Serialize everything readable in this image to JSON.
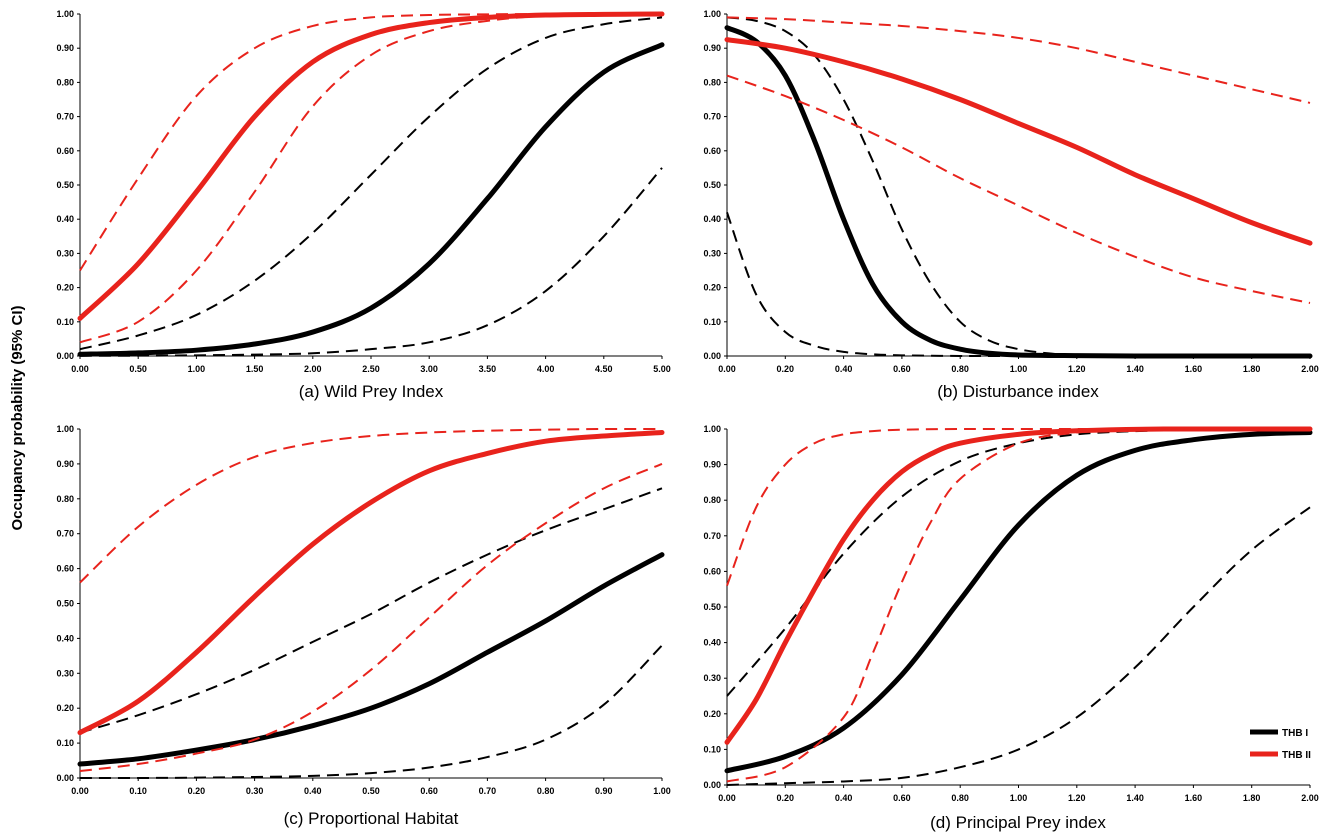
{
  "figure": {
    "ylabel": "Occupancy probability (95% CI)",
    "colors": {
      "THB I": "#000000",
      "THB II": "#e8231c"
    }
  },
  "chart_data": [
    {
      "type": "line",
      "title": "(a) Wild Prey Index",
      "xlim": [
        0,
        5
      ],
      "ylim": [
        0,
        1
      ],
      "grid": false,
      "x_ticks": [
        "0.00",
        "0.50",
        "1.00",
        "1.50",
        "2.00",
        "2.50",
        "3.00",
        "3.50",
        "4.00",
        "4.50",
        "5.00"
      ],
      "y_ticks": [
        "0.00",
        "0.10",
        "0.20",
        "0.30",
        "0.40",
        "0.50",
        "0.60",
        "0.70",
        "0.80",
        "0.90",
        "1.00"
      ],
      "series": [
        {
          "color": "#000000",
          "style": "solid",
          "x": [
            0,
            0.5,
            1,
            1.5,
            2,
            2.5,
            3,
            3.5,
            4,
            4.5,
            5
          ],
          "y": [
            0.005,
            0.009,
            0.017,
            0.035,
            0.07,
            0.14,
            0.27,
            0.46,
            0.67,
            0.83,
            0.91
          ]
        },
        {
          "color": "#000000",
          "style": "dashed",
          "x": [
            0,
            0.5,
            1,
            1.5,
            2,
            2.5,
            3,
            3.5,
            4,
            4.5,
            5
          ],
          "y": [
            0.02,
            0.06,
            0.12,
            0.22,
            0.36,
            0.53,
            0.7,
            0.84,
            0.93,
            0.97,
            0.99
          ]
        },
        {
          "color": "#000000",
          "style": "dashed",
          "x": [
            0,
            0.5,
            1,
            1.5,
            2,
            2.5,
            3,
            3.5,
            4,
            4.5,
            5
          ],
          "y": [
            0.0005,
            0.001,
            0.002,
            0.004,
            0.008,
            0.02,
            0.04,
            0.09,
            0.19,
            0.35,
            0.55
          ]
        },
        {
          "color": "#e8231c",
          "style": "solid",
          "x": [
            0,
            0.5,
            1,
            1.5,
            2,
            2.5,
            3,
            3.5,
            4,
            4.5,
            5
          ],
          "y": [
            0.11,
            0.27,
            0.48,
            0.7,
            0.86,
            0.94,
            0.975,
            0.99,
            0.997,
            0.999,
            1.0
          ]
        },
        {
          "color": "#e8231c",
          "style": "dashed",
          "x": [
            0,
            0.5,
            1,
            1.5,
            2,
            2.5,
            3,
            3.5,
            4,
            4.5,
            5
          ],
          "y": [
            0.25,
            0.52,
            0.76,
            0.9,
            0.965,
            0.99,
            0.997,
            0.999,
            1.0,
            1.0,
            1.0
          ]
        },
        {
          "color": "#e8231c",
          "style": "dashed",
          "x": [
            0,
            0.5,
            1,
            1.5,
            2,
            2.5,
            3,
            3.5,
            4,
            4.5,
            5
          ],
          "y": [
            0.04,
            0.1,
            0.25,
            0.48,
            0.73,
            0.88,
            0.95,
            0.98,
            0.995,
            0.998,
            1.0
          ]
        }
      ]
    },
    {
      "type": "line",
      "title": "(b) Disturbance index",
      "xlim": [
        0,
        2
      ],
      "ylim": [
        0,
        1
      ],
      "grid": false,
      "x_ticks": [
        "0.00",
        "0.20",
        "0.40",
        "0.60",
        "0.80",
        "1.00",
        "1.20",
        "1.40",
        "1.60",
        "1.80",
        "2.00"
      ],
      "y_ticks": [
        "0.00",
        "0.10",
        "0.20",
        "0.30",
        "0.40",
        "0.50",
        "0.60",
        "0.70",
        "0.80",
        "0.90",
        "1.00"
      ],
      "series": [
        {
          "color": "#000000",
          "style": "solid",
          "x": [
            0,
            0.1,
            0.2,
            0.3,
            0.4,
            0.5,
            0.6,
            0.7,
            0.8,
            0.9,
            1.0,
            1.2,
            1.4,
            1.6,
            1.8,
            2.0
          ],
          "y": [
            0.96,
            0.92,
            0.82,
            0.63,
            0.4,
            0.21,
            0.1,
            0.045,
            0.02,
            0.008,
            0.003,
            0.001,
            0.0,
            0.0,
            0.0,
            0.0
          ]
        },
        {
          "color": "#000000",
          "style": "dashed",
          "x": [
            0,
            0.1,
            0.2,
            0.3,
            0.4,
            0.5,
            0.6,
            0.7,
            0.8,
            0.9,
            1.0,
            1.1,
            1.2,
            1.4,
            1.6,
            2.0
          ],
          "y": [
            0.99,
            0.98,
            0.95,
            0.88,
            0.75,
            0.57,
            0.37,
            0.21,
            0.1,
            0.045,
            0.02,
            0.008,
            0.003,
            0.0,
            0.0,
            0.0
          ]
        },
        {
          "color": "#000000",
          "style": "dashed",
          "x": [
            0,
            0.1,
            0.2,
            0.3,
            0.4,
            0.5,
            0.6,
            0.8,
            1.0,
            1.5,
            2.0
          ],
          "y": [
            0.42,
            0.18,
            0.07,
            0.03,
            0.012,
            0.005,
            0.002,
            0.0,
            0.0,
            0.0,
            0.0
          ]
        },
        {
          "color": "#e8231c",
          "style": "solid",
          "x": [
            0,
            0.2,
            0.4,
            0.6,
            0.8,
            1.0,
            1.2,
            1.4,
            1.6,
            1.8,
            2.0
          ],
          "y": [
            0.925,
            0.9,
            0.86,
            0.81,
            0.75,
            0.68,
            0.61,
            0.53,
            0.46,
            0.39,
            0.33
          ]
        },
        {
          "color": "#e8231c",
          "style": "dashed",
          "x": [
            0,
            0.2,
            0.4,
            0.6,
            0.8,
            1.0,
            1.2,
            1.4,
            1.6,
            1.8,
            2.0
          ],
          "y": [
            0.99,
            0.985,
            0.975,
            0.965,
            0.95,
            0.93,
            0.9,
            0.86,
            0.82,
            0.78,
            0.74
          ]
        },
        {
          "color": "#e8231c",
          "style": "dashed",
          "x": [
            0,
            0.2,
            0.4,
            0.6,
            0.8,
            1.0,
            1.2,
            1.4,
            1.6,
            1.8,
            2.0
          ],
          "y": [
            0.82,
            0.76,
            0.69,
            0.61,
            0.52,
            0.44,
            0.36,
            0.29,
            0.23,
            0.19,
            0.155
          ]
        }
      ]
    },
    {
      "type": "line",
      "title": "(c) Proportional Habitat",
      "xlim": [
        0,
        1
      ],
      "ylim": [
        0,
        1
      ],
      "grid": false,
      "x_ticks": [
        "0.00",
        "0.10",
        "0.20",
        "0.30",
        "0.40",
        "0.50",
        "0.60",
        "0.70",
        "0.80",
        "0.90",
        "1.00"
      ],
      "y_ticks": [
        "0.00",
        "0.10",
        "0.20",
        "0.30",
        "0.40",
        "0.50",
        "0.60",
        "0.70",
        "0.80",
        "0.90",
        "1.00"
      ],
      "series": [
        {
          "color": "#000000",
          "style": "solid",
          "x": [
            0,
            0.1,
            0.2,
            0.3,
            0.4,
            0.5,
            0.6,
            0.7,
            0.8,
            0.9,
            1.0
          ],
          "y": [
            0.04,
            0.055,
            0.08,
            0.11,
            0.15,
            0.2,
            0.27,
            0.36,
            0.45,
            0.55,
            0.64
          ]
        },
        {
          "color": "#000000",
          "style": "dashed",
          "x": [
            0,
            0.1,
            0.2,
            0.3,
            0.4,
            0.5,
            0.6,
            0.7,
            0.8,
            0.9,
            1.0
          ],
          "y": [
            0.13,
            0.18,
            0.24,
            0.31,
            0.39,
            0.47,
            0.56,
            0.64,
            0.71,
            0.77,
            0.83
          ]
        },
        {
          "color": "#000000",
          "style": "dashed",
          "x": [
            0,
            0.1,
            0.2,
            0.3,
            0.4,
            0.5,
            0.6,
            0.7,
            0.8,
            0.9,
            1.0
          ],
          "y": [
            0.0,
            0.0,
            0.001,
            0.003,
            0.006,
            0.014,
            0.03,
            0.06,
            0.11,
            0.21,
            0.38
          ]
        },
        {
          "color": "#e8231c",
          "style": "solid",
          "x": [
            0,
            0.1,
            0.2,
            0.3,
            0.4,
            0.5,
            0.6,
            0.7,
            0.8,
            0.9,
            1.0
          ],
          "y": [
            0.13,
            0.22,
            0.36,
            0.52,
            0.67,
            0.79,
            0.88,
            0.93,
            0.965,
            0.98,
            0.99
          ]
        },
        {
          "color": "#e8231c",
          "style": "dashed",
          "x": [
            0,
            0.1,
            0.2,
            0.3,
            0.4,
            0.5,
            0.6,
            0.7,
            0.8,
            0.9,
            1.0
          ],
          "y": [
            0.56,
            0.72,
            0.84,
            0.92,
            0.96,
            0.98,
            0.99,
            0.995,
            0.998,
            1.0,
            1.0
          ]
        },
        {
          "color": "#e8231c",
          "style": "dashed",
          "x": [
            0,
            0.1,
            0.2,
            0.3,
            0.4,
            0.5,
            0.6,
            0.7,
            0.8,
            0.9,
            1.0
          ],
          "y": [
            0.02,
            0.04,
            0.07,
            0.11,
            0.19,
            0.31,
            0.46,
            0.61,
            0.73,
            0.83,
            0.9
          ]
        }
      ]
    },
    {
      "type": "line",
      "title": "(d) Principal Prey index",
      "xlim": [
        0,
        2
      ],
      "ylim": [
        0,
        1
      ],
      "grid": false,
      "legend": {
        "position": "bottom-right",
        "entries": [
          {
            "label": "THB I",
            "color": "#000000"
          },
          {
            "label": "THB II",
            "color": "#e8231c"
          }
        ]
      },
      "x_ticks": [
        "0.00",
        "0.20",
        "0.40",
        "0.60",
        "0.80",
        "1.00",
        "1.20",
        "1.40",
        "1.60",
        "1.80",
        "2.00"
      ],
      "y_ticks": [
        "0.00",
        "0.10",
        "0.20",
        "0.30",
        "0.40",
        "0.50",
        "0.60",
        "0.70",
        "0.80",
        "0.90",
        "1.00"
      ],
      "series": [
        {
          "color": "#000000",
          "style": "solid",
          "x": [
            0,
            0.2,
            0.4,
            0.6,
            0.8,
            1.0,
            1.2,
            1.4,
            1.6,
            1.8,
            2.0
          ],
          "y": [
            0.04,
            0.08,
            0.16,
            0.31,
            0.52,
            0.73,
            0.87,
            0.94,
            0.97,
            0.985,
            0.99
          ]
        },
        {
          "color": "#000000",
          "style": "dashed",
          "x": [
            0,
            0.2,
            0.4,
            0.6,
            0.8,
            1.0,
            1.2,
            1.4,
            1.6,
            1.8,
            2.0
          ],
          "y": [
            0.25,
            0.44,
            0.65,
            0.81,
            0.91,
            0.96,
            0.985,
            0.994,
            0.998,
            1.0,
            1.0
          ]
        },
        {
          "color": "#000000",
          "style": "dashed",
          "x": [
            0,
            0.2,
            0.4,
            0.6,
            0.8,
            1.0,
            1.2,
            1.4,
            1.6,
            1.8,
            2.0
          ],
          "y": [
            0.0,
            0.005,
            0.01,
            0.02,
            0.05,
            0.1,
            0.19,
            0.33,
            0.5,
            0.66,
            0.78
          ]
        },
        {
          "color": "#e8231c",
          "style": "solid",
          "x": [
            0,
            0.1,
            0.2,
            0.3,
            0.4,
            0.5,
            0.6,
            0.7,
            0.8,
            1.0,
            1.2,
            1.5,
            2.0
          ],
          "y": [
            0.12,
            0.24,
            0.4,
            0.55,
            0.69,
            0.8,
            0.88,
            0.93,
            0.96,
            0.985,
            0.995,
            1.0,
            1.0
          ]
        },
        {
          "color": "#e8231c",
          "style": "dashed",
          "x": [
            0,
            0.1,
            0.2,
            0.3,
            0.4,
            0.5,
            0.6,
            0.8,
            1.0,
            1.5,
            2.0
          ],
          "y": [
            0.56,
            0.78,
            0.9,
            0.96,
            0.985,
            0.994,
            0.998,
            1.0,
            1.0,
            1.0,
            1.0
          ]
        },
        {
          "color": "#e8231c",
          "style": "dashed",
          "x": [
            0,
            0.2,
            0.4,
            0.5,
            0.6,
            0.7,
            0.8,
            1.0,
            1.2,
            1.4,
            2.0
          ],
          "y": [
            0.01,
            0.05,
            0.19,
            0.37,
            0.57,
            0.74,
            0.86,
            0.96,
            0.99,
            0.997,
            1.0
          ]
        }
      ]
    }
  ]
}
